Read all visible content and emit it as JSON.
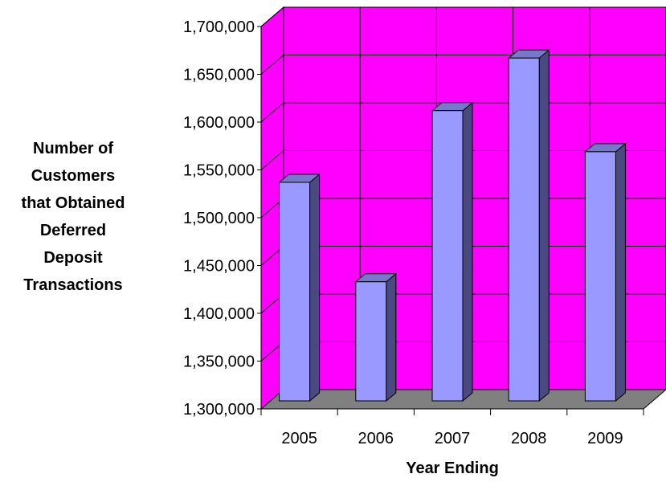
{
  "chart_data": {
    "type": "bar",
    "categories": [
      "2005",
      "2006",
      "2007",
      "2008",
      "2009"
    ],
    "values": [
      1537000,
      1433000,
      1612000,
      1667000,
      1569000
    ],
    "xlabel": "Year Ending",
    "ylabel_lines": [
      "Number of",
      "Customers",
      "that Obtained",
      "Deferred",
      "Deposit",
      "Transactions"
    ],
    "ylim": [
      1300000,
      1700000
    ],
    "yticks": [
      {
        "value": 1300000,
        "label": "1,300,000"
      },
      {
        "value": 1350000,
        "label": "1,350,000"
      },
      {
        "value": 1400000,
        "label": "1,400,000"
      },
      {
        "value": 1450000,
        "label": "1,450,000"
      },
      {
        "value": 1500000,
        "label": "1,500,000"
      },
      {
        "value": 1550000,
        "label": "1,550,000"
      },
      {
        "value": 1600000,
        "label": "1,600,000"
      },
      {
        "value": 1650000,
        "label": "1,650,000"
      },
      {
        "value": 1700000,
        "label": "1,700,000"
      }
    ],
    "grid": true,
    "legend": "none",
    "colors": {
      "wall": "#ff00ff",
      "floor": "#808080",
      "bar_front": "#9999ff",
      "bar_top": "#7777cc",
      "bar_side": "#4a4a80",
      "grid": "#000000"
    }
  }
}
